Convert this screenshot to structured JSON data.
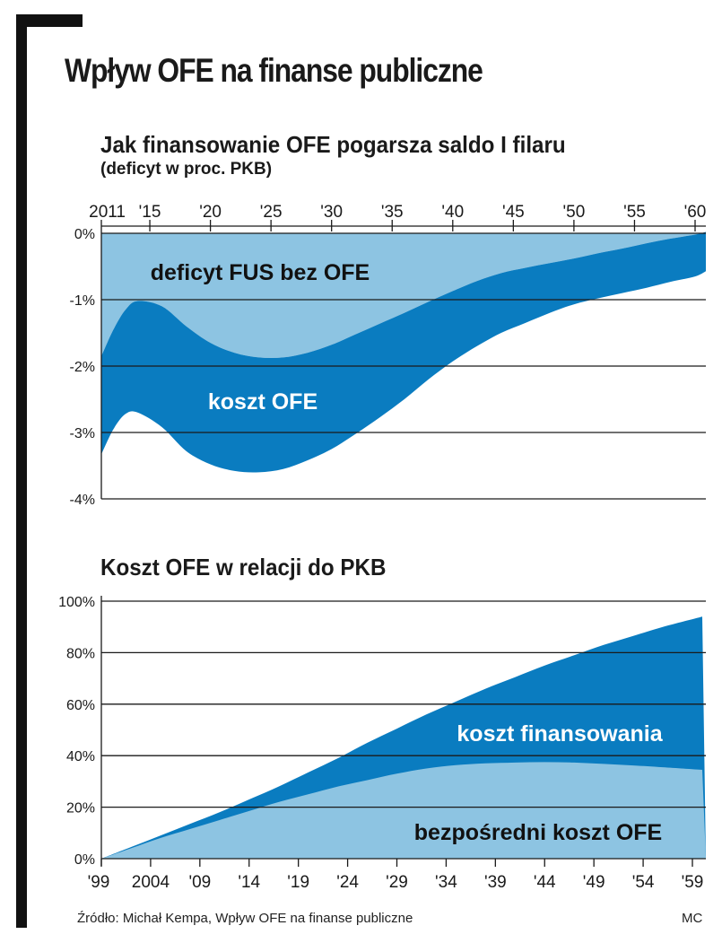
{
  "title": "Wpływ OFE na finanse publiczne",
  "source": "Źródło: Michał Kempa, Wpływ OFE na finanse publiczne",
  "credit": "MC",
  "colors": {
    "light": "#8dc4e2",
    "dark": "#0a7cc0",
    "grid": "#1a1a1a"
  },
  "chart_data": [
    {
      "type": "area",
      "title": "Jak finansowanie OFE pogarsza saldo I filaru",
      "subtitle": "(deficyt w proc. PKB)",
      "x_tick_labels": [
        "2011",
        "'15",
        "'20",
        "'25",
        "'30",
        "'35",
        "'40",
        "'45",
        "'50",
        "'55",
        "'60"
      ],
      "x_ticks": [
        2011,
        2015,
        2020,
        2025,
        2030,
        2035,
        2040,
        2045,
        2050,
        2055,
        2060
      ],
      "y_tick_labels": [
        "0%",
        "-1%",
        "-2%",
        "-3%",
        "-4%"
      ],
      "ylim": [
        -4,
        0
      ],
      "xlim": [
        2011,
        2062
      ],
      "grid": true,
      "series": [
        {
          "name": "deficyt FUS bez OFE",
          "x": [
            2011,
            2012,
            2013,
            2014,
            2016,
            2018,
            2020,
            2022,
            2024,
            2026,
            2028,
            2030,
            2032,
            2034,
            2036,
            2038,
            2040,
            2042,
            2044,
            2046,
            2048,
            2050,
            2052,
            2054,
            2056,
            2058,
            2060,
            2062
          ],
          "values": [
            -1.85,
            -1.45,
            -1.15,
            -1.02,
            -1.1,
            -1.4,
            -1.65,
            -1.8,
            -1.87,
            -1.87,
            -1.8,
            -1.68,
            -1.52,
            -1.36,
            -1.2,
            -1.03,
            -0.87,
            -0.72,
            -0.6,
            -0.52,
            -0.45,
            -0.38,
            -0.3,
            -0.23,
            -0.15,
            -0.08,
            -0.02,
            0.02
          ]
        },
        {
          "name": "koszt OFE",
          "x": [
            2011,
            2012,
            2013,
            2014,
            2016,
            2018,
            2020,
            2022,
            2024,
            2026,
            2028,
            2030,
            2032,
            2034,
            2036,
            2038,
            2040,
            2042,
            2044,
            2046,
            2048,
            2050,
            2052,
            2054,
            2056,
            2058,
            2060,
            2062
          ],
          "values": [
            -3.33,
            -2.95,
            -2.72,
            -2.7,
            -2.92,
            -3.28,
            -3.48,
            -3.58,
            -3.6,
            -3.55,
            -3.42,
            -3.25,
            -3.02,
            -2.77,
            -2.5,
            -2.2,
            -1.93,
            -1.7,
            -1.5,
            -1.35,
            -1.2,
            -1.07,
            -0.98,
            -0.9,
            -0.82,
            -0.73,
            -0.65,
            -0.57
          ]
        }
      ],
      "annotations": [
        "deficyt FUS bez OFE",
        "koszt OFE"
      ]
    },
    {
      "type": "area",
      "title": "Koszt OFE w relacji do PKB",
      "x_tick_labels": [
        "'99",
        "2004",
        "'09",
        "'14",
        "'19",
        "'24",
        "'29",
        "'34",
        "'39",
        "'44",
        "'49",
        "'54",
        "'59"
      ],
      "x_ticks": [
        1999,
        2004,
        2009,
        2014,
        2019,
        2024,
        2029,
        2034,
        2039,
        2044,
        2049,
        2054,
        2059
      ],
      "y_tick_labels": [
        "100%",
        "80%",
        "60%",
        "40%",
        "20%",
        "0%"
      ],
      "ylim": [
        0,
        100
      ],
      "xlim": [
        1999,
        2060
      ],
      "grid": true,
      "series": [
        {
          "name": "bezpośredni koszt OFE",
          "x": [
            1999,
            2002,
            2005,
            2008,
            2011,
            2014,
            2017,
            2020,
            2023,
            2026,
            2029,
            2032,
            2035,
            2038,
            2041,
            2044,
            2047,
            2050,
            2053,
            2056,
            2060
          ],
          "values": [
            0,
            4,
            8,
            11.5,
            15,
            18.5,
            22,
            25,
            28,
            30.5,
            33,
            35,
            36.3,
            37,
            37.3,
            37.5,
            37.3,
            36.8,
            36.2,
            35.5,
            34.5
          ]
        },
        {
          "name": "koszt finansowania",
          "x": [
            1999,
            2002,
            2005,
            2008,
            2011,
            2014,
            2017,
            2020,
            2023,
            2026,
            2029,
            2032,
            2035,
            2038,
            2041,
            2044,
            2047,
            2050,
            2053,
            2056,
            2060
          ],
          "values": [
            0,
            4.5,
            9,
            13.5,
            18,
            23,
            28,
            33.5,
            39,
            45,
            50.5,
            56,
            61,
            66,
            70.5,
            75,
            79,
            83,
            86.5,
            90,
            94
          ]
        }
      ],
      "annotations": [
        "koszt finansowania",
        "bezpośredni koszt OFE"
      ]
    }
  ]
}
